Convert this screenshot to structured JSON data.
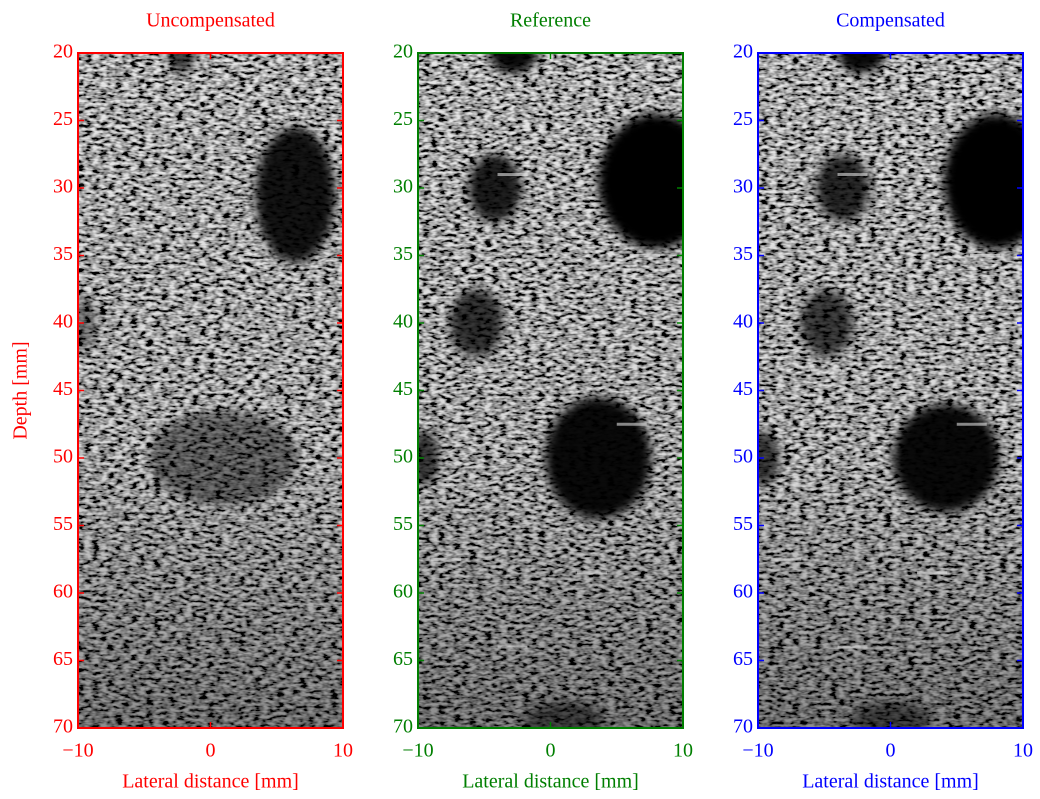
{
  "chart_data": [
    {
      "type": "image",
      "title": "Uncompensated",
      "xlabel": "Lateral distance [mm]",
      "ylabel": "Depth [mm]",
      "color": "#ff0000",
      "xlim": [
        -10,
        10
      ],
      "xticks": [
        {
          "value": -10,
          "label": "−10"
        },
        0,
        10
      ],
      "ylim": [
        20,
        70
      ],
      "y_reversed": true,
      "yticks": [
        20,
        25,
        30,
        35,
        40,
        45,
        50,
        55,
        60,
        65,
        70
      ]
    },
    {
      "type": "image",
      "title": "Reference",
      "xlabel": "Lateral distance [mm]",
      "color": "#007f00",
      "xlim": [
        -10,
        10
      ],
      "xticks": [
        {
          "value": -10,
          "label": "−10"
        },
        0,
        10
      ],
      "ylim": [
        20,
        70
      ],
      "y_reversed": true,
      "yticks": [
        20,
        25,
        30,
        35,
        40,
        45,
        50,
        55,
        60,
        65,
        70
      ]
    },
    {
      "type": "image",
      "title": "Compensated",
      "xlabel": "Lateral distance [mm]",
      "color": "#0000ff",
      "xlim": [
        -10,
        10
      ],
      "xticks": [
        {
          "value": -10,
          "label": "−10"
        },
        0,
        10
      ],
      "ylim": [
        20,
        70
      ],
      "y_reversed": true,
      "yticks": [
        20,
        25,
        30,
        35,
        40,
        45,
        50,
        55,
        60,
        65,
        70
      ]
    }
  ]
}
